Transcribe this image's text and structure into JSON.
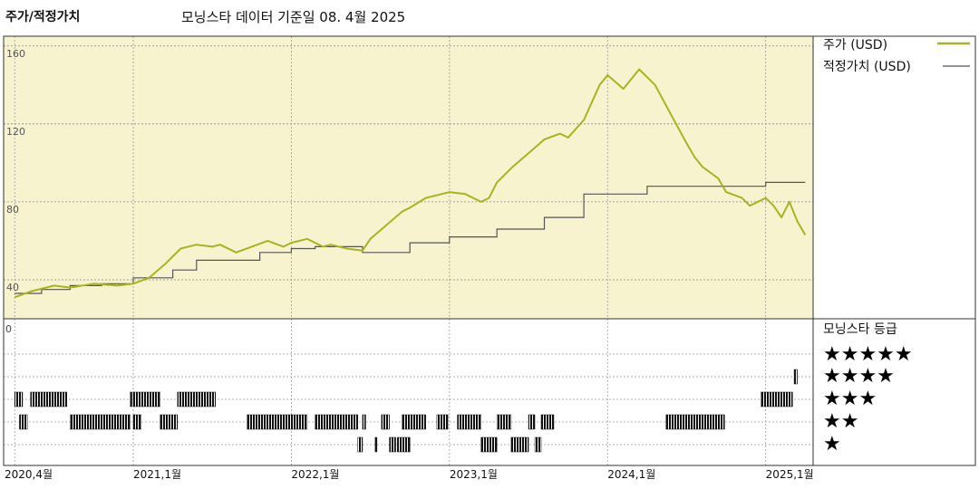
{
  "header": {
    "left_title": "주가/적정가치",
    "source": "모닝스타 데이터 기준일 08. 4월 2025"
  },
  "legend": {
    "price_label": "주가 (USD)",
    "fair_label": "적정가치 (USD)",
    "price_color": "#a8b320",
    "fair_color": "#555555"
  },
  "rating_panel": {
    "title": "모닝스타 등급",
    "stars": [
      "★★★★★",
      "★★★★",
      "★★★",
      "★★",
      "★"
    ],
    "zero_label": "0"
  },
  "x_ticks": [
    "2020,4월",
    "2021,1월",
    "2022,1월",
    "2023,1월",
    "2024,1월",
    "2025,1월"
  ],
  "y_ticks": [
    "160",
    "120",
    "80",
    "40"
  ],
  "chart_data": {
    "type": "line",
    "ylim": [
      20,
      165
    ],
    "xrange": [
      "2020-04",
      "2025-04"
    ],
    "x_tick_positions": [
      2020.25,
      2021.0,
      2022.0,
      2023.0,
      2024.0,
      2025.0
    ],
    "series": [
      {
        "name": "주가 (USD)",
        "x": [
          2020.25,
          2020.35,
          2020.5,
          2020.6,
          2020.75,
          2020.9,
          2021.0,
          2021.1,
          2021.2,
          2021.3,
          2021.4,
          2021.5,
          2021.55,
          2021.65,
          2021.75,
          2021.85,
          2021.95,
          2022.0,
          2022.1,
          2022.2,
          2022.25,
          2022.35,
          2022.45,
          2022.5,
          2022.6,
          2022.7,
          2022.75,
          2022.85,
          2022.95,
          2023.0,
          2023.1,
          2023.2,
          2023.25,
          2023.3,
          2023.4,
          2023.5,
          2023.6,
          2023.7,
          2023.75,
          2023.85,
          2023.95,
          2024.0,
          2024.1,
          2024.2,
          2024.25,
          2024.3,
          2024.4,
          2024.5,
          2024.55,
          2024.6,
          2024.7,
          2024.75,
          2024.85,
          2024.9,
          2025.0,
          2025.05,
          2025.1,
          2025.15,
          2025.2,
          2025.25
        ],
        "y": [
          31,
          34,
          37,
          36,
          38,
          37,
          38,
          41,
          48,
          56,
          58,
          57,
          58,
          54,
          57,
          60,
          57,
          59,
          61,
          57,
          58,
          56,
          55,
          61,
          68,
          75,
          77,
          82,
          84,
          85,
          84,
          80,
          82,
          90,
          98,
          105,
          112,
          115,
          113,
          122,
          140,
          145,
          138,
          148,
          144,
          140,
          125,
          110,
          103,
          98,
          92,
          85,
          82,
          78,
          82,
          78,
          72,
          80,
          70,
          63
        ]
      },
      {
        "name": "적정가치 (USD)",
        "x": [
          2020.25,
          2020.42,
          2020.42,
          2020.6,
          2020.6,
          2020.8,
          2020.8,
          2021.0,
          2021.0,
          2021.25,
          2021.25,
          2021.4,
          2021.4,
          2021.8,
          2021.8,
          2022.0,
          2022.0,
          2022.15,
          2022.15,
          2022.45,
          2022.45,
          2022.75,
          2022.75,
          2023.0,
          2023.0,
          2023.3,
          2023.3,
          2023.6,
          2023.6,
          2023.85,
          2023.85,
          2024.25,
          2024.25,
          2025.0,
          2025.0,
          2025.25
        ],
        "y": [
          33,
          33,
          35,
          35,
          37,
          37,
          38,
          38,
          41,
          41,
          45,
          45,
          50,
          50,
          54,
          54,
          56,
          56,
          57,
          57,
          54,
          54,
          59,
          59,
          62,
          62,
          66,
          66,
          72,
          72,
          84,
          84,
          88,
          88,
          90,
          90
        ]
      }
    ],
    "ratings": [
      {
        "stars": 5,
        "ranges": []
      },
      {
        "stars": 4,
        "ranges": [
          [
            2025.18,
            2025.2
          ]
        ]
      },
      {
        "stars": 3,
        "ranges": [
          [
            2020.25,
            2020.3
          ],
          [
            2020.35,
            2020.58
          ],
          [
            2020.98,
            2020.99
          ],
          [
            2021.0,
            2021.17
          ],
          [
            2021.28,
            2021.52
          ],
          [
            2024.97,
            2025.17
          ]
        ]
      },
      {
        "stars": 2,
        "ranges": [
          [
            2020.28,
            2020.33
          ],
          [
            2020.6,
            2020.98
          ],
          [
            2021.0,
            2021.05
          ],
          [
            2021.17,
            2021.28
          ],
          [
            2021.72,
            2022.1
          ],
          [
            2022.15,
            2022.42
          ],
          [
            2022.45,
            2022.47
          ],
          [
            2022.57,
            2022.62
          ],
          [
            2022.7,
            2022.85
          ],
          [
            2022.92,
            2022.99
          ],
          [
            2023.05,
            2023.2
          ],
          [
            2023.3,
            2023.39
          ],
          [
            2023.5,
            2023.54
          ],
          [
            2023.58,
            2023.66
          ],
          [
            2024.37,
            2024.74
          ]
        ]
      },
      {
        "stars": 1,
        "ranges": [
          [
            2022.42,
            2022.45
          ],
          [
            2022.53,
            2022.54
          ],
          [
            2022.62,
            2022.66
          ],
          [
            2022.67,
            2022.75
          ],
          [
            2023.2,
            2023.3
          ],
          [
            2023.39,
            2023.5
          ],
          [
            2023.54,
            2023.58
          ]
        ]
      }
    ]
  }
}
